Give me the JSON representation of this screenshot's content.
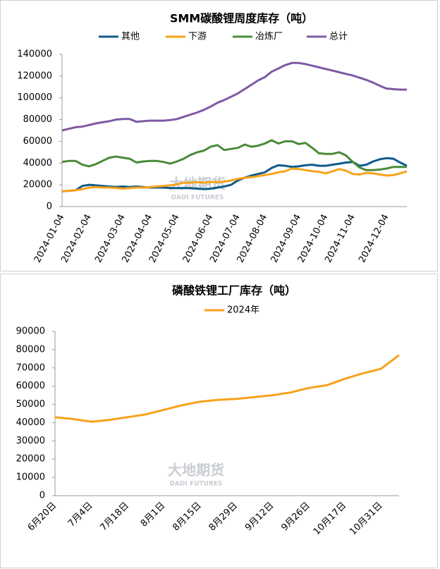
{
  "chart_data": [
    {
      "type": "line",
      "title": "SMM碳酸锂周度库存（吨）",
      "categories": [
        "2024-01-04",
        null,
        null,
        null,
        "2024-02-04",
        null,
        null,
        null,
        null,
        "2024-03-04",
        null,
        null,
        null,
        "2024-04-04",
        null,
        null,
        null,
        "2024-05-04",
        null,
        null,
        null,
        null,
        "2024-06-04",
        null,
        null,
        null,
        "2024-07-04",
        null,
        null,
        null,
        "2024-08-04",
        null,
        null,
        null,
        null,
        "2024-09-04",
        null,
        null,
        null,
        "2024-10-04",
        null,
        null,
        null,
        "2024-11-04",
        null,
        null,
        null,
        null,
        "2024-12-04",
        null,
        null,
        null
      ],
      "series": [
        {
          "name": "其他",
          "color": "#0e5a8a",
          "values": [
            14000,
            14500,
            15000,
            19000,
            20000,
            19500,
            19000,
            18500,
            18000,
            18500,
            18000,
            18500,
            18000,
            17500,
            17500,
            17500,
            17000,
            17000,
            17000,
            17000,
            16500,
            16000,
            16500,
            17500,
            18500,
            20000,
            24000,
            26500,
            28500,
            30000,
            31500,
            35500,
            38000,
            37500,
            36500,
            37000,
            38000,
            38500,
            37500,
            37500,
            38500,
            39500,
            40500,
            41000,
            37500,
            38500,
            41500,
            43500,
            44500,
            44000,
            40500,
            37500
          ]
        },
        {
          "name": "下游",
          "color": "#f7a21b",
          "values": [
            14000,
            14500,
            15000,
            16000,
            17500,
            18000,
            17500,
            17500,
            17000,
            16500,
            17000,
            17500,
            17500,
            18000,
            18500,
            19000,
            19500,
            20500,
            22000,
            22000,
            22500,
            22000,
            22500,
            22500,
            23000,
            24000,
            25500,
            26500,
            27000,
            28000,
            29000,
            30000,
            31500,
            32500,
            35000,
            34500,
            33500,
            32500,
            32000,
            30500,
            32500,
            34500,
            33000,
            30000,
            29500,
            31000,
            30500,
            29500,
            28500,
            29000,
            30500,
            32500
          ]
        },
        {
          "name": "冶炼厂",
          "color": "#4a8b3a",
          "values": [
            41000,
            42000,
            42000,
            38500,
            37000,
            39000,
            42000,
            45000,
            46000,
            45000,
            44000,
            40500,
            41500,
            42000,
            42000,
            41000,
            39500,
            41500,
            44000,
            47500,
            50000,
            51500,
            55000,
            56500,
            52000,
            53000,
            54000,
            57000,
            55000,
            56000,
            58000,
            61000,
            58000,
            60000,
            60000,
            57500,
            58500,
            54000,
            49000,
            48500,
            48500,
            50000,
            47000,
            41000,
            36000,
            33500,
            33500,
            34000,
            35000,
            36500,
            36500,
            36500
          ]
        },
        {
          "name": "总计",
          "color": "#7e5aa3",
          "values": [
            70000,
            71500,
            73000,
            73500,
            75000,
            76500,
            77500,
            78500,
            80000,
            80500,
            80500,
            78000,
            78500,
            79000,
            79000,
            79000,
            79500,
            80500,
            82500,
            84500,
            86500,
            89000,
            92000,
            95500,
            98000,
            101000,
            104000,
            108000,
            112000,
            116000,
            119000,
            124000,
            127000,
            130000,
            132000,
            132000,
            131000,
            129500,
            128000,
            126500,
            125000,
            123500,
            122000,
            120500,
            118500,
            116500,
            114000,
            111000,
            108500,
            108000,
            107500,
            107500
          ]
        }
      ],
      "ylim": [
        0,
        140000
      ],
      "yticks": [
        0,
        20000,
        40000,
        60000,
        80000,
        100000,
        120000,
        140000
      ],
      "legend": "top",
      "watermark": "大地期货",
      "watermark_sub": "DADI FUTURES"
    },
    {
      "type": "line",
      "title": "磷酸铁锂工厂库存（吨）",
      "categories": [
        "6月20日",
        null,
        "7月4日",
        null,
        "7月18日",
        null,
        "8月1日",
        null,
        "8月15日",
        null,
        "8月29日",
        null,
        "9月12日",
        null,
        "9月26日",
        null,
        "10月17日",
        null,
        "10月31日",
        null
      ],
      "series": [
        {
          "name": "2024年",
          "color": "#f7a21b",
          "values": [
            43000,
            42000,
            40500,
            41500,
            43000,
            44500,
            47000,
            49500,
            51500,
            52500,
            53000,
            54000,
            55000,
            56500,
            59000,
            60500,
            64000,
            67000,
            69500,
            77000
          ]
        }
      ],
      "ylim": [
        0,
        90000
      ],
      "yticks": [
        0,
        10000,
        20000,
        30000,
        40000,
        50000,
        60000,
        70000,
        80000,
        90000
      ],
      "legend": "top",
      "watermark": "大地期货",
      "watermark_sub": "DADI FUTURES"
    }
  ]
}
